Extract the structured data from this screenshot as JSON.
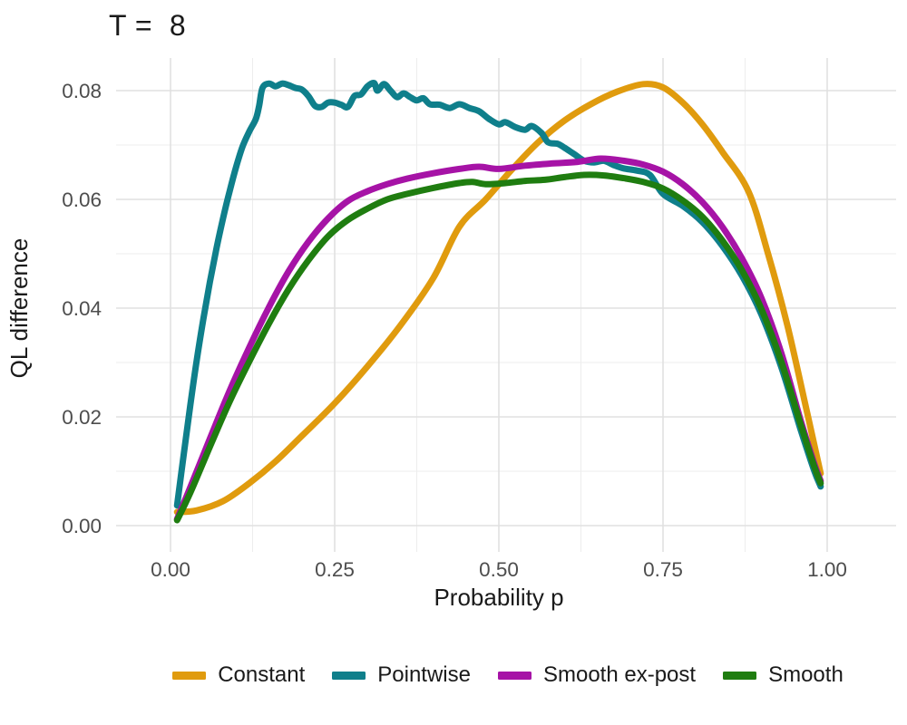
{
  "chart_data": {
    "type": "line",
    "title": "T =  8",
    "xlabel": "Probability p",
    "ylabel": "QL difference",
    "legend_position": "bottom",
    "grid": true,
    "colors": {
      "grid_major": "#e1e1e1",
      "grid_minor": "#ededed",
      "axis_text": "#4d4d4d",
      "title_text": "#1a1a1a"
    },
    "xlim": [
      0.01,
      0.99
    ],
    "ylim": [
      0.0,
      0.08
    ],
    "x_ticks": [
      {
        "value": 0.0,
        "label": "0.00"
      },
      {
        "value": 0.25,
        "label": "0.25"
      },
      {
        "value": 0.5,
        "label": "0.50"
      },
      {
        "value": 0.75,
        "label": "0.75"
      },
      {
        "value": 1.0,
        "label": "1.00"
      }
    ],
    "y_ticks": [
      {
        "value": 0.0,
        "label": "0.00"
      },
      {
        "value": 0.02,
        "label": "0.02"
      },
      {
        "value": 0.04,
        "label": "0.04"
      },
      {
        "value": 0.06,
        "label": "0.06"
      },
      {
        "value": 0.08,
        "label": "0.08"
      }
    ],
    "series": [
      {
        "name": "Constant",
        "color": "#e09b0e",
        "points": [
          [
            0.01,
            0.0025
          ],
          [
            0.04,
            0.0028
          ],
          [
            0.08,
            0.0045
          ],
          [
            0.12,
            0.0078
          ],
          [
            0.16,
            0.0118
          ],
          [
            0.2,
            0.0165
          ],
          [
            0.25,
            0.0225
          ],
          [
            0.3,
            0.0293
          ],
          [
            0.35,
            0.0368
          ],
          [
            0.4,
            0.0455
          ],
          [
            0.44,
            0.055
          ],
          [
            0.48,
            0.06
          ],
          [
            0.52,
            0.0655
          ],
          [
            0.56,
            0.0705
          ],
          [
            0.6,
            0.0745
          ],
          [
            0.64,
            0.0775
          ],
          [
            0.68,
            0.0798
          ],
          [
            0.72,
            0.0812
          ],
          [
            0.75,
            0.0806
          ],
          [
            0.78,
            0.0778
          ],
          [
            0.81,
            0.0738
          ],
          [
            0.84,
            0.0688
          ],
          [
            0.88,
            0.0615
          ],
          [
            0.91,
            0.05
          ],
          [
            0.94,
            0.0365
          ],
          [
            0.97,
            0.0205
          ],
          [
            0.99,
            0.0096
          ]
        ]
      },
      {
        "name": "Pointwise",
        "color": "#0f7f8b",
        "points": [
          [
            0.01,
            0.0037
          ],
          [
            0.02,
            0.013
          ],
          [
            0.03,
            0.022
          ],
          [
            0.04,
            0.0305
          ],
          [
            0.05,
            0.038
          ],
          [
            0.06,
            0.0448
          ],
          [
            0.07,
            0.051
          ],
          [
            0.08,
            0.0565
          ],
          [
            0.09,
            0.0615
          ],
          [
            0.1,
            0.066
          ],
          [
            0.11,
            0.0698
          ],
          [
            0.12,
            0.0725
          ],
          [
            0.13,
            0.0748
          ],
          [
            0.135,
            0.0772
          ],
          [
            0.14,
            0.0805
          ],
          [
            0.15,
            0.0813
          ],
          [
            0.16,
            0.0808
          ],
          [
            0.17,
            0.0813
          ],
          [
            0.18,
            0.081
          ],
          [
            0.19,
            0.0805
          ],
          [
            0.2,
            0.0802
          ],
          [
            0.21,
            0.079
          ],
          [
            0.22,
            0.0772
          ],
          [
            0.23,
            0.077
          ],
          [
            0.24,
            0.0778
          ],
          [
            0.25,
            0.0778
          ],
          [
            0.26,
            0.0774
          ],
          [
            0.27,
            0.077
          ],
          [
            0.28,
            0.079
          ],
          [
            0.29,
            0.0793
          ],
          [
            0.3,
            0.0808
          ],
          [
            0.31,
            0.0814
          ],
          [
            0.315,
            0.08
          ],
          [
            0.325,
            0.0812
          ],
          [
            0.335,
            0.08
          ],
          [
            0.345,
            0.0788
          ],
          [
            0.355,
            0.0795
          ],
          [
            0.365,
            0.0788
          ],
          [
            0.375,
            0.0782
          ],
          [
            0.385,
            0.0786
          ],
          [
            0.395,
            0.0775
          ],
          [
            0.41,
            0.0774
          ],
          [
            0.425,
            0.0768
          ],
          [
            0.44,
            0.0775
          ],
          [
            0.455,
            0.0768
          ],
          [
            0.47,
            0.0762
          ],
          [
            0.485,
            0.0748
          ],
          [
            0.5,
            0.0738
          ],
          [
            0.51,
            0.0742
          ],
          [
            0.525,
            0.0733
          ],
          [
            0.54,
            0.0728
          ],
          [
            0.55,
            0.0735
          ],
          [
            0.565,
            0.0722
          ],
          [
            0.575,
            0.0705
          ],
          [
            0.59,
            0.0702
          ],
          [
            0.6,
            0.0695
          ],
          [
            0.615,
            0.0683
          ],
          [
            0.63,
            0.0671
          ],
          [
            0.645,
            0.0668
          ],
          [
            0.66,
            0.0671
          ],
          [
            0.675,
            0.0663
          ],
          [
            0.69,
            0.0657
          ],
          [
            0.71,
            0.0653
          ],
          [
            0.73,
            0.0645
          ],
          [
            0.75,
            0.061
          ],
          [
            0.78,
            0.0588
          ],
          [
            0.81,
            0.0558
          ],
          [
            0.84,
            0.0515
          ],
          [
            0.87,
            0.046
          ],
          [
            0.9,
            0.0388
          ],
          [
            0.93,
            0.0292
          ],
          [
            0.96,
            0.0175
          ],
          [
            0.98,
            0.0102
          ],
          [
            0.99,
            0.0072
          ]
        ]
      },
      {
        "name": "Smooth ex-post",
        "color": "#a613a6",
        "points": [
          [
            0.01,
            0.0012
          ],
          [
            0.03,
            0.007
          ],
          [
            0.06,
            0.016
          ],
          [
            0.09,
            0.0248
          ],
          [
            0.12,
            0.0328
          ],
          [
            0.15,
            0.0402
          ],
          [
            0.18,
            0.0468
          ],
          [
            0.21,
            0.0522
          ],
          [
            0.24,
            0.0565
          ],
          [
            0.27,
            0.0597
          ],
          [
            0.3,
            0.0615
          ],
          [
            0.33,
            0.0628
          ],
          [
            0.36,
            0.0638
          ],
          [
            0.4,
            0.0648
          ],
          [
            0.44,
            0.0656
          ],
          [
            0.47,
            0.066
          ],
          [
            0.5,
            0.0656
          ],
          [
            0.54,
            0.0662
          ],
          [
            0.58,
            0.0666
          ],
          [
            0.62,
            0.0669
          ],
          [
            0.655,
            0.0675
          ],
          [
            0.69,
            0.0671
          ],
          [
            0.72,
            0.0664
          ],
          [
            0.75,
            0.0651
          ],
          [
            0.78,
            0.0628
          ],
          [
            0.81,
            0.0595
          ],
          [
            0.84,
            0.055
          ],
          [
            0.87,
            0.0492
          ],
          [
            0.9,
            0.0418
          ],
          [
            0.93,
            0.0318
          ],
          [
            0.96,
            0.0192
          ],
          [
            0.98,
            0.0115
          ],
          [
            0.99,
            0.0082
          ]
        ]
      },
      {
        "name": "Smooth",
        "color": "#1f7d10",
        "points": [
          [
            0.01,
            0.001
          ],
          [
            0.03,
            0.006
          ],
          [
            0.06,
            0.0145
          ],
          [
            0.09,
            0.0228
          ],
          [
            0.12,
            0.0302
          ],
          [
            0.15,
            0.0372
          ],
          [
            0.18,
            0.0435
          ],
          [
            0.21,
            0.0488
          ],
          [
            0.24,
            0.0532
          ],
          [
            0.27,
            0.0562
          ],
          [
            0.3,
            0.0583
          ],
          [
            0.33,
            0.06
          ],
          [
            0.36,
            0.061
          ],
          [
            0.4,
            0.0621
          ],
          [
            0.44,
            0.063
          ],
          [
            0.46,
            0.0632
          ],
          [
            0.48,
            0.0628
          ],
          [
            0.51,
            0.063
          ],
          [
            0.54,
            0.0634
          ],
          [
            0.57,
            0.0636
          ],
          [
            0.6,
            0.0641
          ],
          [
            0.63,
            0.0645
          ],
          [
            0.66,
            0.0644
          ],
          [
            0.69,
            0.0639
          ],
          [
            0.72,
            0.0632
          ],
          [
            0.75,
            0.062
          ],
          [
            0.78,
            0.0598
          ],
          [
            0.81,
            0.0568
          ],
          [
            0.84,
            0.0525
          ],
          [
            0.87,
            0.047
          ],
          [
            0.9,
            0.0398
          ],
          [
            0.93,
            0.0302
          ],
          [
            0.96,
            0.0185
          ],
          [
            0.98,
            0.011
          ],
          [
            0.99,
            0.0078
          ]
        ]
      }
    ]
  }
}
